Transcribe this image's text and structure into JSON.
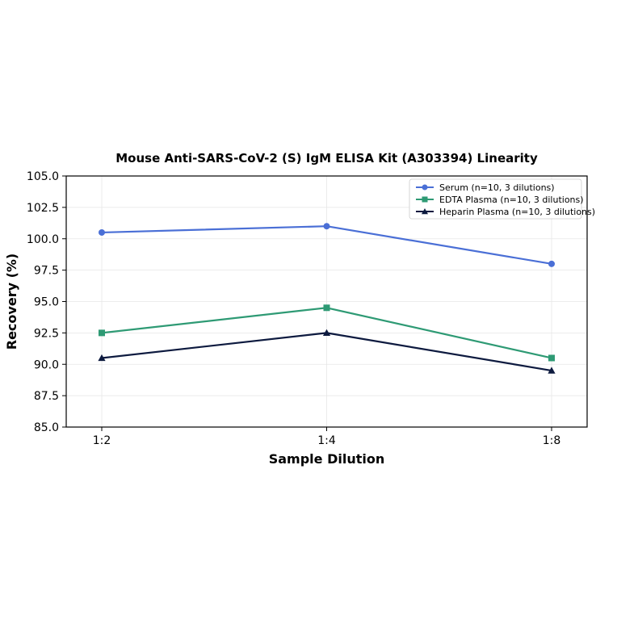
{
  "chart_data": {
    "type": "line",
    "title": "Mouse Anti-SARS-CoV-2 (S) IgM ELISA Kit (A303394) Linearity",
    "xlabel": "Sample Dilution",
    "ylabel": "Recovery (%)",
    "categories": [
      "1:2",
      "1:4",
      "1:8"
    ],
    "ylim": [
      85.0,
      105.0
    ],
    "yticks": [
      "85.0",
      "87.5",
      "90.0",
      "92.5",
      "95.0",
      "97.5",
      "100.0",
      "102.5",
      "105.0"
    ],
    "grid": true,
    "legend_position": "top-right",
    "series": [
      {
        "name": "Serum (n=10, 3 dilutions)",
        "values": [
          100.5,
          101.0,
          98.0
        ],
        "color": "#4a6fd6",
        "marker": "circle"
      },
      {
        "name": "EDTA Plasma (n=10, 3 dilutions)",
        "values": [
          92.5,
          94.5,
          90.5
        ],
        "color": "#2e9a74",
        "marker": "square"
      },
      {
        "name": "Heparin Plasma (n=10, 3 dilutions)",
        "values": [
          90.5,
          92.5,
          89.5
        ],
        "color": "#0d1a3f",
        "marker": "triangle"
      }
    ]
  }
}
